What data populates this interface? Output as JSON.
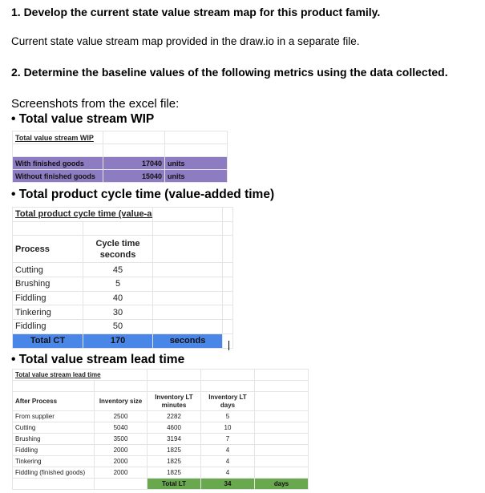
{
  "heading1": "1. Develop the current state value stream map for this product family.",
  "para1": "Current state value stream map provided in the draw.io in a separate file.",
  "heading2": "2. Determine the baseline values of the following metrics using the data collected.",
  "para2": "Screenshots from the excel file:",
  "bullets": [
    "• Total value stream WIP",
    "• Total product cycle time (value-added time)",
    "• Total value stream lead time"
  ],
  "colors": {
    "wip": "#8e7cc3",
    "ct": "#4a86e8",
    "lt": "#6aa84f"
  },
  "wip": {
    "title": "Total value stream WIP",
    "rows": [
      [
        "With finished goods",
        "17040",
        "units"
      ],
      [
        "Without finished goods",
        "15040",
        "units"
      ]
    ]
  },
  "ct": {
    "title": "Total product cycle time (value-added time)",
    "headers": [
      "Process",
      "Cycle time seconds"
    ],
    "rows": [
      [
        "Cutting",
        "45"
      ],
      [
        "Brushing",
        "5"
      ],
      [
        "Fiddling",
        "40"
      ],
      [
        "Tinkering",
        "30"
      ],
      [
        "Fiddling",
        "50"
      ]
    ],
    "total": [
      "Total CT",
      "170",
      "seconds"
    ]
  },
  "lt": {
    "title": "Total value stream lead time",
    "headers": [
      "After Process",
      "Inventory size",
      "Inventory LT minutes",
      "Inventory LT days"
    ],
    "rows": [
      [
        "From supplier",
        "2500",
        "2282",
        "5"
      ],
      [
        "Cutting",
        "5040",
        "4600",
        "10"
      ],
      [
        "Brushing",
        "3500",
        "3194",
        "7"
      ],
      [
        "Fiddling",
        "2000",
        "1825",
        "4"
      ],
      [
        "Tinkering",
        "2000",
        "1825",
        "4"
      ],
      [
        "Fiddling (finished goods)",
        "2000",
        "1825",
        "4"
      ]
    ],
    "total": [
      "Total LT",
      "34",
      "days"
    ]
  }
}
